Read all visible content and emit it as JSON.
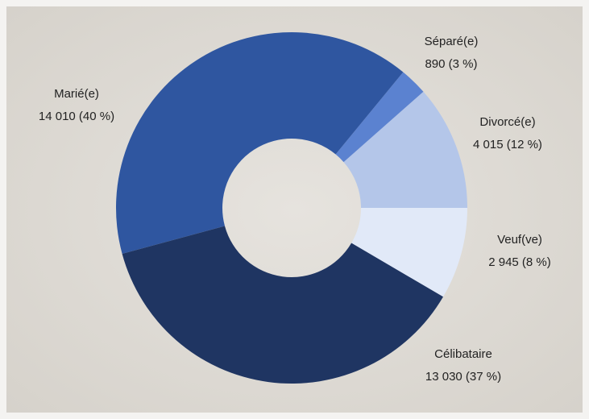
{
  "chart_data": {
    "type": "donut",
    "categories": [
      "Divorcé(e)",
      "Séparé(e)",
      "Marié(e)",
      "Célibataire",
      "Veuf(ve)"
    ],
    "values": [
      4015,
      890,
      14010,
      13030,
      2945
    ],
    "value_labels": [
      "4 015 (12 %)",
      "890 (3 %)",
      "14 010 (40 %)",
      "13 030 (37 %)",
      "2 945 (8 %)"
    ],
    "colors": [
      "#b4c6e9",
      "#5b82d0",
      "#2f56a0",
      "#1f3562",
      "#e1e9f8"
    ]
  }
}
